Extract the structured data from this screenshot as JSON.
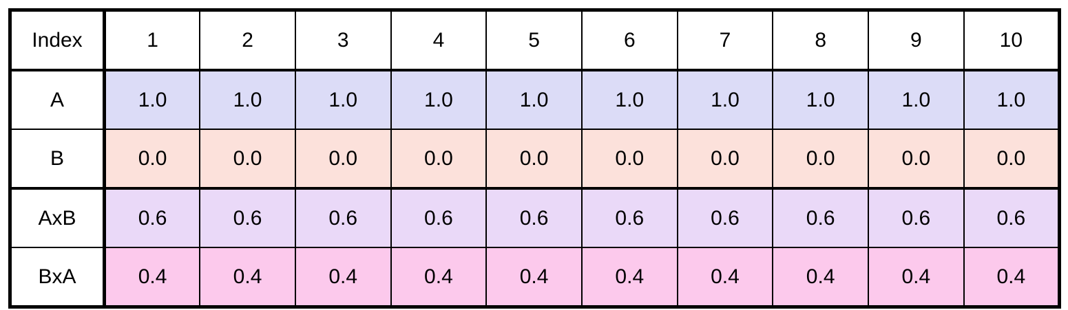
{
  "table": {
    "header_label": "Index",
    "columns": [
      "1",
      "2",
      "3",
      "4",
      "5",
      "6",
      "7",
      "8",
      "9",
      "10"
    ],
    "rows": [
      {
        "label": "A",
        "color": "#dcdcf7",
        "values": [
          "1.0",
          "1.0",
          "1.0",
          "1.0",
          "1.0",
          "1.0",
          "1.0",
          "1.0",
          "1.0",
          "1.0"
        ]
      },
      {
        "label": "B",
        "color": "#fce1db",
        "values": [
          "0.0",
          "0.0",
          "0.0",
          "0.0",
          "0.0",
          "0.0",
          "0.0",
          "0.0",
          "0.0",
          "0.0"
        ]
      },
      {
        "label": "AxB",
        "color": "#ead9f8",
        "values": [
          "0.6",
          "0.6",
          "0.6",
          "0.6",
          "0.6",
          "0.6",
          "0.6",
          "0.6",
          "0.6",
          "0.6"
        ]
      },
      {
        "label": "BxA",
        "color": "#fcc9ec",
        "values": [
          "0.4",
          "0.4",
          "0.4",
          "0.4",
          "0.4",
          "0.4",
          "0.4",
          "0.4",
          "0.4",
          "0.4"
        ]
      }
    ]
  },
  "chart_data": {
    "type": "table",
    "title": "",
    "index_label": "Index",
    "index": [
      1,
      2,
      3,
      4,
      5,
      6,
      7,
      8,
      9,
      10
    ],
    "series": [
      {
        "name": "A",
        "values": [
          1.0,
          1.0,
          1.0,
          1.0,
          1.0,
          1.0,
          1.0,
          1.0,
          1.0,
          1.0
        ]
      },
      {
        "name": "B",
        "values": [
          0.0,
          0.0,
          0.0,
          0.0,
          0.0,
          0.0,
          0.0,
          0.0,
          0.0,
          0.0
        ]
      },
      {
        "name": "AxB",
        "values": [
          0.6,
          0.6,
          0.6,
          0.6,
          0.6,
          0.6,
          0.6,
          0.6,
          0.6,
          0.6
        ]
      },
      {
        "name": "BxA",
        "values": [
          0.4,
          0.4,
          0.4,
          0.4,
          0.4,
          0.4,
          0.4,
          0.4,
          0.4,
          0.4
        ]
      }
    ],
    "row_colors": {
      "A": "#dcdcf7",
      "B": "#fce1db",
      "AxB": "#ead9f8",
      "BxA": "#fcc9ec"
    },
    "border_color": "#000000"
  }
}
